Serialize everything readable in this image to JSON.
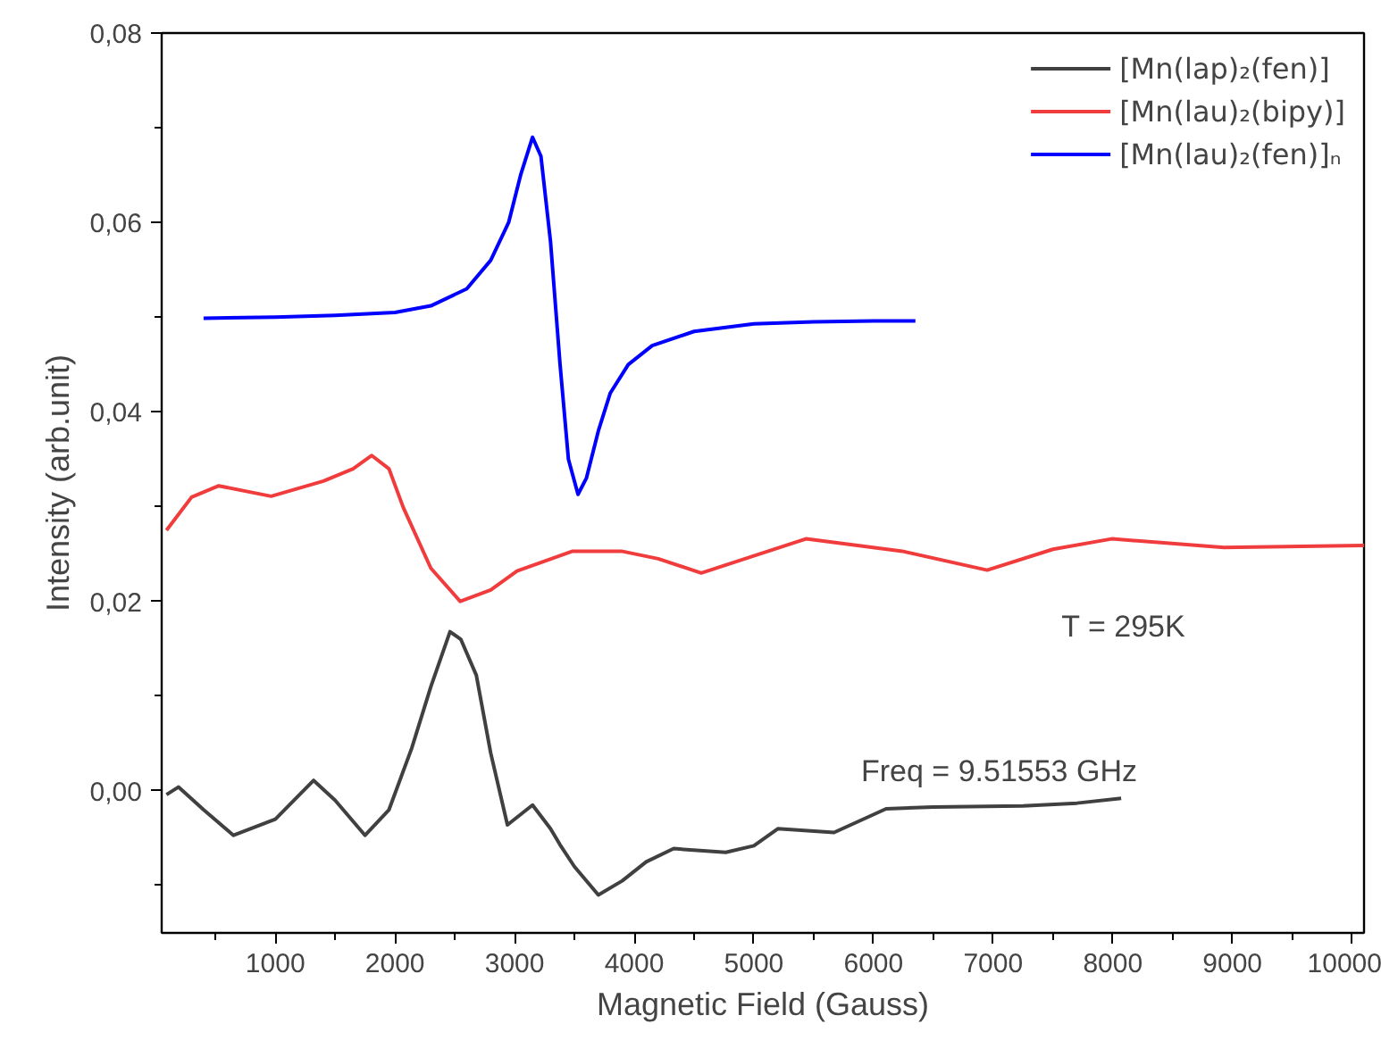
{
  "chart_data": {
    "type": "line",
    "xlabel": "Magnetic Field (Gauss)",
    "ylabel": "Intensity (arb.unit)",
    "annotations": [
      "T = 295K",
      "Freq =  9.51553 GHz"
    ],
    "xlim": [
      50,
      10100
    ],
    "ylim": [
      -0.015,
      0.08
    ],
    "xticks": [
      {
        "value": 500,
        "label": null
      },
      1000,
      {
        "value": 1500,
        "label": null
      },
      2000,
      {
        "value": 2500,
        "label": null
      },
      3000,
      {
        "value": 3500,
        "label": null
      },
      4000,
      {
        "value": 4500,
        "label": null
      },
      5000,
      {
        "value": 5500,
        "label": null
      },
      6000,
      {
        "value": 6500,
        "label": null
      },
      7000,
      {
        "value": 7500,
        "label": null
      },
      8000,
      {
        "value": 8500,
        "label": null
      },
      9000,
      {
        "value": 9500,
        "label": null
      },
      10000
    ],
    "yticks": [
      {
        "value": -0.01,
        "label": null
      },
      {
        "value": 0,
        "label": "0,00"
      },
      {
        "value": 0.01,
        "label": null
      },
      {
        "value": 0.02,
        "label": "0,02"
      },
      {
        "value": 0.03,
        "label": null
      },
      {
        "value": 0.04,
        "label": "0,04"
      },
      {
        "value": 0.05,
        "label": null
      },
      {
        "value": 0.06,
        "label": "0,06"
      },
      {
        "value": 0.07,
        "label": null
      },
      {
        "value": 0.08,
        "label": "0,08"
      }
    ],
    "grid": false,
    "legend": "top right",
    "marker": "none",
    "line_style": "solid",
    "series": [
      {
        "name": "[Mn(lap)₂(fen)]",
        "color": "#404040",
        "x": [
          90,
          190,
          400,
          650,
          1000,
          1320,
          1500,
          1750,
          1950,
          2140,
          2300,
          2460,
          2550,
          2680,
          2800,
          2940,
          3150,
          3300,
          3380,
          3500,
          3700,
          3900,
          4100,
          4330,
          4765,
          5000,
          5200,
          5670,
          6105,
          6500,
          7250,
          7700,
          8070
        ],
        "values": [
          -0.0004,
          0.0004,
          -0.002,
          -0.0047,
          -0.003,
          0.0011,
          -0.001,
          -0.0047,
          -0.002,
          0.0045,
          0.011,
          0.0168,
          0.016,
          0.0122,
          0.004,
          -0.0036,
          -0.0015,
          -0.004,
          -0.0057,
          -0.008,
          -0.011,
          -0.0095,
          -0.0075,
          -0.0061,
          -0.0065,
          -0.0058,
          -0.004,
          -0.0044,
          -0.0019,
          -0.0017,
          -0.0016,
          -0.0013,
          -0.0008
        ]
      },
      {
        "name": "[Mn(lau)₂(bipy)]",
        "color": "#f03c3c",
        "x": [
          90,
          300,
          527,
          965,
          1402,
          1650,
          1806,
          1950,
          2070,
          2300,
          2545,
          2800,
          3020,
          3485,
          3893,
          4200,
          4560,
          5000,
          5435,
          6240,
          6950,
          7500,
          7990,
          8930,
          10100
        ],
        "values": [
          0.0275,
          0.031,
          0.0322,
          0.0311,
          0.0327,
          0.034,
          0.0354,
          0.034,
          0.0299,
          0.0235,
          0.02,
          0.0212,
          0.0232,
          0.0253,
          0.0253,
          0.0245,
          0.023,
          0.0248,
          0.0266,
          0.0253,
          0.0233,
          0.0255,
          0.0266,
          0.0257,
          0.0259
        ]
      },
      {
        "name": "[Mn(lau)₂(fen)]ₙ",
        "color": "#0000ff",
        "x": [
          400,
          1000,
          1500,
          2000,
          2300,
          2600,
          2800,
          2950,
          3050,
          3150,
          3220,
          3300,
          3380,
          3450,
          3530,
          3600,
          3700,
          3800,
          3950,
          4150,
          4500,
          5000,
          5500,
          6000,
          6350
        ],
        "values": [
          0.0499,
          0.05,
          0.0502,
          0.0505,
          0.0512,
          0.053,
          0.056,
          0.06,
          0.065,
          0.069,
          0.067,
          0.058,
          0.045,
          0.035,
          0.0313,
          0.033,
          0.038,
          0.042,
          0.045,
          0.047,
          0.0485,
          0.0493,
          0.0495,
          0.0496,
          0.0496
        ]
      }
    ]
  }
}
